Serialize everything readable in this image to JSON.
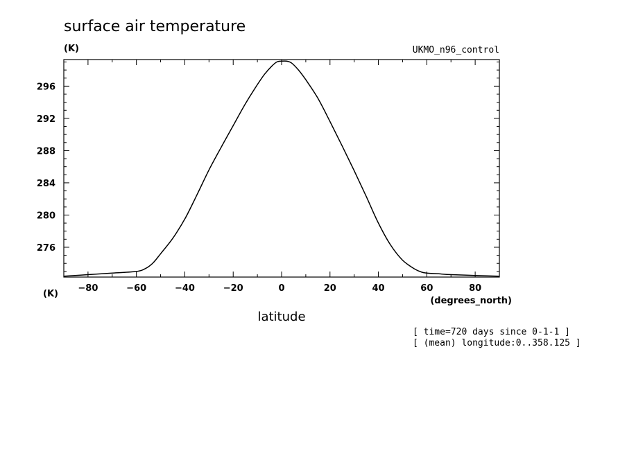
{
  "chart_data": {
    "type": "line",
    "title": "surface air temperature",
    "units_label": "(K)",
    "y_units_corner": "(K)",
    "dataset": "UKMO_n96_control",
    "xlabel": "latitude",
    "x_units": "(degrees_north)",
    "annotations": [
      "[ time=720 days since 0-1-1 ]",
      "[ (mean) longitude:0..358.125 ]"
    ],
    "xlim": [
      -90,
      90
    ],
    "ylim": [
      272.3,
      299.3
    ],
    "x_ticks": [
      -80,
      -60,
      -40,
      -20,
      0,
      20,
      40,
      60,
      80
    ],
    "x_tick_labels": [
      "-80",
      "-60",
      "-40",
      "-20",
      "0",
      "20",
      "40",
      "60",
      "80"
    ],
    "y_ticks": [
      276,
      280,
      284,
      288,
      292,
      296
    ],
    "y_tick_labels": [
      "276",
      "280",
      "284",
      "288",
      "292",
      "296"
    ],
    "grid": false,
    "legend": "none",
    "line_color": "#000000",
    "series": [
      {
        "x": [
          -90,
          -80,
          -70,
          -60,
          -56,
          -53,
          -50,
          -45,
          -40,
          -35,
          -30,
          -25,
          -20,
          -15,
          -10,
          -7,
          -4,
          -2,
          0,
          2,
          4,
          7,
          10,
          15,
          20,
          25,
          30,
          35,
          40,
          45,
          50,
          55,
          58,
          60,
          65,
          70,
          80,
          90
        ],
        "y": [
          272.4,
          272.6,
          272.8,
          273.0,
          273.4,
          274.1,
          275.2,
          277.1,
          279.5,
          282.5,
          285.6,
          288.4,
          291.1,
          293.8,
          296.2,
          297.5,
          298.5,
          299.0,
          299.1,
          299.1,
          298.9,
          298.0,
          296.8,
          294.5,
          291.6,
          288.6,
          285.5,
          282.3,
          279.0,
          276.3,
          274.4,
          273.3,
          272.9,
          272.8,
          272.7,
          272.6,
          272.5,
          272.4
        ]
      }
    ]
  }
}
